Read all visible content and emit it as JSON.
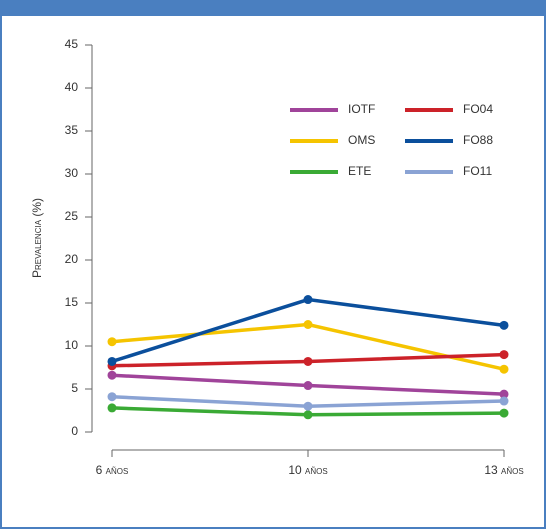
{
  "chart_data": {
    "type": "line",
    "y_label": "Prevalencia (%)",
    "categories": [
      "6 años",
      "10 años",
      "13 años"
    ],
    "ylim": [
      0,
      45
    ],
    "yticks": [
      0,
      5,
      10,
      15,
      20,
      25,
      30,
      35,
      40,
      45
    ],
    "series": [
      {
        "name": "IOTF",
        "color": "#a0449a",
        "values": [
          6.6,
          5.4,
          4.4
        ]
      },
      {
        "name": "OMS",
        "color": "#f5c400",
        "values": [
          10.5,
          12.5,
          7.3
        ]
      },
      {
        "name": "ETE",
        "color": "#3aaa35",
        "values": [
          2.8,
          2.0,
          2.2
        ]
      },
      {
        "name": "FO04",
        "color": "#cc2229",
        "values": [
          7.7,
          8.2,
          9.0
        ]
      },
      {
        "name": "FO88",
        "color": "#0b4f9c",
        "values": [
          8.2,
          15.4,
          12.4
        ]
      },
      {
        "name": "FO11",
        "color": "#8aa3d4",
        "values": [
          4.1,
          3.0,
          3.6
        ]
      }
    ]
  }
}
